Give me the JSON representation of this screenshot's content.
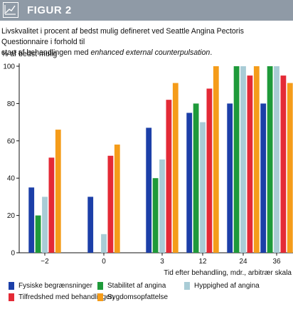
{
  "figure_label": "FIGUR 2",
  "caption": {
    "line1": "Livskvalitet i procent af bedst mulig defineret ved Seattle Angina Pectoris Questionnaire i forhold til",
    "line2_plain": "start af behandlingen med ",
    "line2_italic": "enhanced external counterpulsation",
    "line2_end": "."
  },
  "icons": {
    "header_icon": "chart-line-icon"
  },
  "chart_data": {
    "type": "bar",
    "ylabel": "% af bedst mulig",
    "xlabel": "Tid efter behandling, mdr., arbitrær skala",
    "ylim": [
      0,
      100
    ],
    "yticks": [
      0,
      20,
      40,
      60,
      80,
      100
    ],
    "categories": [
      "−2",
      "0",
      "3",
      "12",
      "24",
      "36"
    ],
    "series": [
      {
        "name": "Fysiske begrænsninger",
        "color": "#1c3fa8",
        "values": [
          35,
          30,
          67,
          75,
          80,
          80
        ]
      },
      {
        "name": "Stabilitet af angina",
        "color": "#1e9a3a",
        "values": [
          20,
          null,
          40,
          80,
          100,
          100
        ]
      },
      {
        "name": "Hyppighed af angina",
        "color": "#a9ccd6",
        "values": [
          30,
          10,
          50,
          70,
          100,
          100
        ]
      },
      {
        "name": "Tilfredshed med behandlingen",
        "color": "#e42a36",
        "values": [
          51,
          52,
          82,
          88,
          95,
          95
        ]
      },
      {
        "name": "Sygdomsopfattelse",
        "color": "#f59c1a",
        "values": [
          66,
          58,
          91,
          100,
          100,
          91
        ]
      }
    ],
    "grid": false,
    "legend_position": "bottom"
  }
}
